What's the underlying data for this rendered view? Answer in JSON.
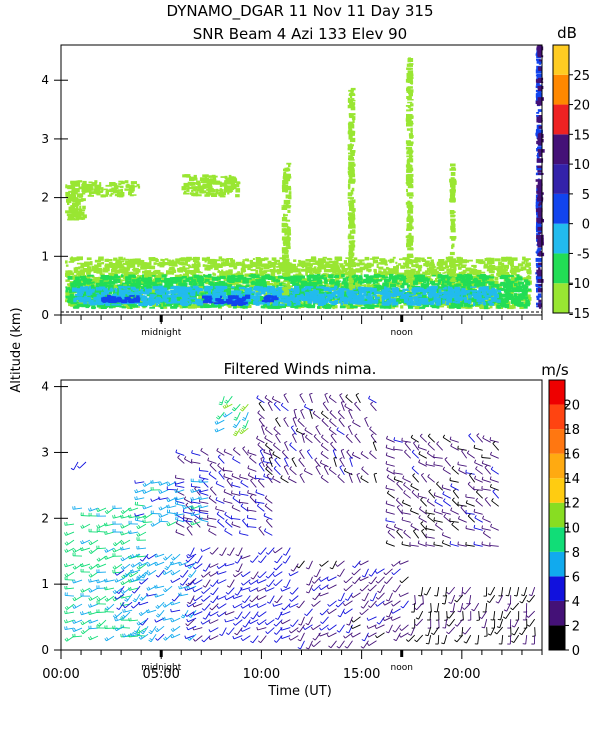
{
  "header": {
    "line1": "DYNAMO_DGAR  11 Nov 11 Day 315",
    "line2": "SNR Beam 4 Azi 133 Elev 90"
  },
  "shared_axes": {
    "ylabel": "Altitude (km)",
    "xlabel": "Time (UT)",
    "x_tick_labels": [
      "00:00",
      "05:00",
      "10:00",
      "15:00",
      "20:00"
    ],
    "x_ticks_hours": [
      0,
      5,
      10,
      15,
      20
    ],
    "x_range_hours": [
      0,
      24
    ],
    "markers": [
      {
        "label": "midnight",
        "hour": 5
      },
      {
        "label": "noon",
        "hour": 17
      }
    ]
  },
  "chart_data": [
    {
      "type": "heatmap",
      "title": "SNR Beam 4 Azi 133 Elev 90",
      "ylim": [
        0,
        4.6
      ],
      "y_ticks": [
        0,
        1,
        2,
        3,
        4
      ],
      "colorbar": {
        "unit": "dB",
        "range": [
          -15,
          30
        ],
        "tick_values": [
          -15,
          -10,
          -5,
          0,
          5,
          10,
          15,
          20,
          25
        ],
        "tick_labels": [
          "-15",
          "-10",
          "-5",
          "0",
          "5",
          "10",
          "15",
          "20",
          "25"
        ],
        "bands": [
          {
            "from": -15,
            "to": -10,
            "color": "#99e632"
          },
          {
            "from": -10,
            "to": -5,
            "color": "#22dd55"
          },
          {
            "from": -5,
            "to": 0,
            "color": "#22bbee"
          },
          {
            "from": 0,
            "to": 5,
            "color": "#1144ee"
          },
          {
            "from": 5,
            "to": 10,
            "color": "#3322aa"
          },
          {
            "from": 10,
            "to": 15,
            "color": "#441177"
          },
          {
            "from": 15,
            "to": 20,
            "color": "#ee2222"
          },
          {
            "from": 20,
            "to": 25,
            "color": "#ff8800"
          },
          {
            "from": 25,
            "to": 30,
            "color": "#ffcc22"
          }
        ]
      },
      "echo_regions": [
        {
          "t": [
            0.2,
            1.3
          ],
          "alt": [
            1.6,
            2.3
          ],
          "level": -15
        },
        {
          "t": [
            1.0,
            4.0
          ],
          "alt": [
            2.0,
            2.3
          ],
          "level": -15
        },
        {
          "t": [
            6.0,
            9.0
          ],
          "alt": [
            2.0,
            2.4
          ],
          "level": -15
        },
        {
          "t": [
            0.2,
            23.5
          ],
          "alt": [
            0.1,
            1.0
          ],
          "level": -12
        },
        {
          "t": [
            0.2,
            23.5
          ],
          "alt": [
            0.1,
            0.7
          ],
          "level": -7
        },
        {
          "t": [
            0.5,
            22.0
          ],
          "alt": [
            0.15,
            0.5
          ],
          "level": -2
        },
        {
          "t": [
            2.0,
            4.0
          ],
          "alt": [
            0.2,
            0.35
          ],
          "level": 3
        },
        {
          "t": [
            7.0,
            9.5
          ],
          "alt": [
            0.15,
            0.35
          ],
          "level": 3
        },
        {
          "t": [
            10.0,
            11.0
          ],
          "alt": [
            0.2,
            0.35
          ],
          "level": 3
        },
        {
          "t": [
            11.0,
            11.5
          ],
          "alt": [
            0.3,
            2.6
          ],
          "level": -12
        },
        {
          "t": [
            14.3,
            14.7
          ],
          "alt": [
            0.4,
            3.9
          ],
          "level": -12
        },
        {
          "t": [
            17.2,
            17.6
          ],
          "alt": [
            0.4,
            4.4
          ],
          "level": -12
        },
        {
          "t": [
            19.4,
            19.7
          ],
          "alt": [
            0.5,
            2.6
          ],
          "level": -12
        },
        {
          "t": [
            23.7,
            24.0
          ],
          "alt": [
            0.1,
            4.6
          ],
          "level": 3
        },
        {
          "t": [
            23.8,
            24.0
          ],
          "alt": [
            0.1,
            4.6
          ],
          "level": 12
        }
      ]
    },
    {
      "type": "scatter",
      "title": "Filtered Winds nima.",
      "ylim": [
        0,
        4.1
      ],
      "y_ticks": [
        0,
        1,
        2,
        3,
        4
      ],
      "colorbar": {
        "unit": "m/s",
        "range": [
          0,
          22
        ],
        "tick_values": [
          0,
          2,
          4,
          6,
          8,
          10,
          12,
          14,
          16,
          18,
          20
        ],
        "tick_labels": [
          "0",
          "2",
          "4",
          "6",
          "8",
          "10",
          "12",
          "14",
          "16",
          "18",
          "20"
        ],
        "bands": [
          {
            "from": 0,
            "to": 2,
            "color": "#000000"
          },
          {
            "from": 2,
            "to": 4,
            "color": "#441177"
          },
          {
            "from": 4,
            "to": 6,
            "color": "#1111dd"
          },
          {
            "from": 6,
            "to": 8,
            "color": "#11aaee"
          },
          {
            "from": 8,
            "to": 10,
            "color": "#11dd77"
          },
          {
            "from": 10,
            "to": 12,
            "color": "#88dd22"
          },
          {
            "from": 12,
            "to": 14,
            "color": "#ffcc11"
          },
          {
            "from": 14,
            "to": 16,
            "color": "#ffaa11"
          },
          {
            "from": 16,
            "to": 18,
            "color": "#ff7711"
          },
          {
            "from": 18,
            "to": 20,
            "color": "#ff4411"
          },
          {
            "from": 20,
            "to": 22,
            "color": "#ee0000"
          }
        ]
      },
      "wind_regions": [
        {
          "t": [
            0.5,
            4.5
          ],
          "alt": [
            0.1,
            2.2
          ],
          "speed": 8.5,
          "dir_deg": 250
        },
        {
          "t": [
            3.0,
            7.0
          ],
          "alt": [
            0.1,
            1.5
          ],
          "speed": 6.5,
          "dir_deg": 235
        },
        {
          "t": [
            6.5,
            12.0
          ],
          "alt": [
            0.1,
            1.6
          ],
          "speed": 4.5,
          "dir_deg": 230
        },
        {
          "t": [
            12.0,
            17.5
          ],
          "alt": [
            0.1,
            1.4
          ],
          "speed": 3.2,
          "dir_deg": 225
        },
        {
          "t": [
            17.5,
            24.0
          ],
          "alt": [
            0.1,
            1.0
          ],
          "speed": 1.5,
          "dir_deg": 200
        },
        {
          "t": [
            6.0,
            11.0
          ],
          "alt": [
            1.7,
            3.0
          ],
          "speed": 4.0,
          "dir_deg": 300
        },
        {
          "t": [
            10.0,
            16.0
          ],
          "alt": [
            2.5,
            3.8
          ],
          "speed": 3.0,
          "dir_deg": 320
        },
        {
          "t": [
            16.5,
            22.0
          ],
          "alt": [
            1.5,
            3.2
          ],
          "speed": 2.8,
          "dir_deg": 300
        },
        {
          "t": [
            4.0,
            7.5
          ],
          "alt": [
            1.8,
            2.6
          ],
          "speed": 7.0,
          "dir_deg": 260
        },
        {
          "t": [
            0.7,
            1.5
          ],
          "alt": [
            2.6,
            2.9
          ],
          "speed": 7.0,
          "dir_deg": 210
        },
        {
          "t": [
            8.0,
            9.5
          ],
          "alt": [
            3.3,
            3.9
          ],
          "speed": 9.0,
          "dir_deg": 220
        }
      ]
    }
  ]
}
